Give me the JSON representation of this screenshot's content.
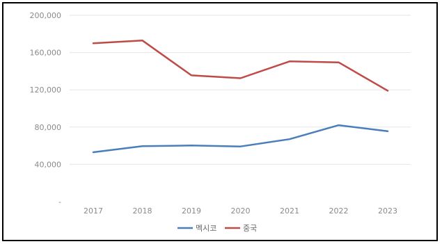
{
  "chart_data": {
    "type": "line",
    "title": "",
    "xlabel": "",
    "ylabel": "",
    "categories": [
      "2017",
      "2018",
      "2019",
      "2020",
      "2021",
      "2022",
      "2023"
    ],
    "ylim": [
      0,
      200000
    ],
    "yticks": [
      0,
      40000,
      80000,
      120000,
      160000,
      200000
    ],
    "ytick_labels": [
      "-",
      "40,000",
      "80,000",
      "120,000",
      "160,000",
      "200,000"
    ],
    "grid": true,
    "legend_position": "bottom",
    "series": [
      {
        "name": "멕시코",
        "color": "#4a7ebb",
        "values": [
          53000,
          59500,
          60200,
          59200,
          67000,
          82000,
          75500
        ]
      },
      {
        "name": "중국",
        "color": "#be4b48",
        "values": [
          170000,
          173000,
          135500,
          132500,
          150500,
          149500,
          119000
        ]
      }
    ]
  }
}
